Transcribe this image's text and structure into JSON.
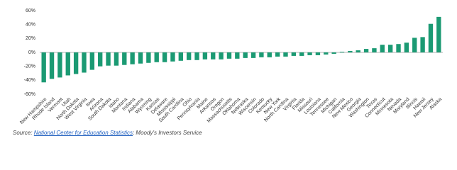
{
  "chart_data": {
    "type": "bar",
    "categories": [
      "New Hampshire",
      "Rhode Island",
      "Vermont",
      "Utah",
      "North Dakota",
      "West Virginia",
      "Iowa",
      "Arizona",
      "South Dakota",
      "Idaho",
      "Montana",
      "Indiana",
      "Alabama",
      "Wyoming",
      "Kansas",
      "Delaware",
      "Mississippi",
      "South Carolina",
      "Ohio",
      "Pennsylvania",
      "Maine",
      "Arkansas",
      "Oregon",
      "Massachusetts",
      "Oklahoma",
      "Nebraska",
      "Wisconsin",
      "Colorado",
      "Kentucky",
      "New York",
      "North Carolina",
      "Virginia",
      "Florida",
      "Missouri",
      "Louisiana",
      "Tennessee",
      "Michigan",
      "California",
      "New Mexico",
      "Georgia",
      "Washington",
      "Texas",
      "Connecticut",
      "Minnesota",
      "Nevada",
      "Maryland",
      "Illinois",
      "Hawaii",
      "New Jersey",
      "Alaska"
    ],
    "values": [
      -43,
      -38,
      -36,
      -33,
      -31,
      -29,
      -25,
      -20,
      -19,
      -19,
      -18,
      -17,
      -16,
      -15,
      -14,
      -14,
      -13,
      -12,
      -11,
      -11,
      -10,
      -10,
      -10,
      -9,
      -9,
      -8,
      -8,
      -7,
      -7,
      -6,
      -6,
      -5,
      -5,
      -4,
      -4,
      -3,
      -2,
      1,
      2,
      3,
      5,
      6,
      11,
      11,
      12,
      14,
      21,
      22,
      41,
      51
    ],
    "color": "#1b9a73",
    "ylim": [
      -60,
      60
    ],
    "yticks": [
      {
        "value": -60,
        "label": "-60%"
      },
      {
        "value": -40,
        "label": "-40%"
      },
      {
        "value": -20,
        "label": "-20%"
      },
      {
        "value": 0,
        "label": "0%"
      },
      {
        "value": 20,
        "label": "20%"
      },
      {
        "value": 40,
        "label": "40%"
      },
      {
        "value": 60,
        "label": "60%"
      }
    ],
    "grid": false,
    "source_prefix": "Source: ",
    "source_link": "National Center for Education Statistics",
    "source_suffix": "; Moody's Investors Service"
  }
}
